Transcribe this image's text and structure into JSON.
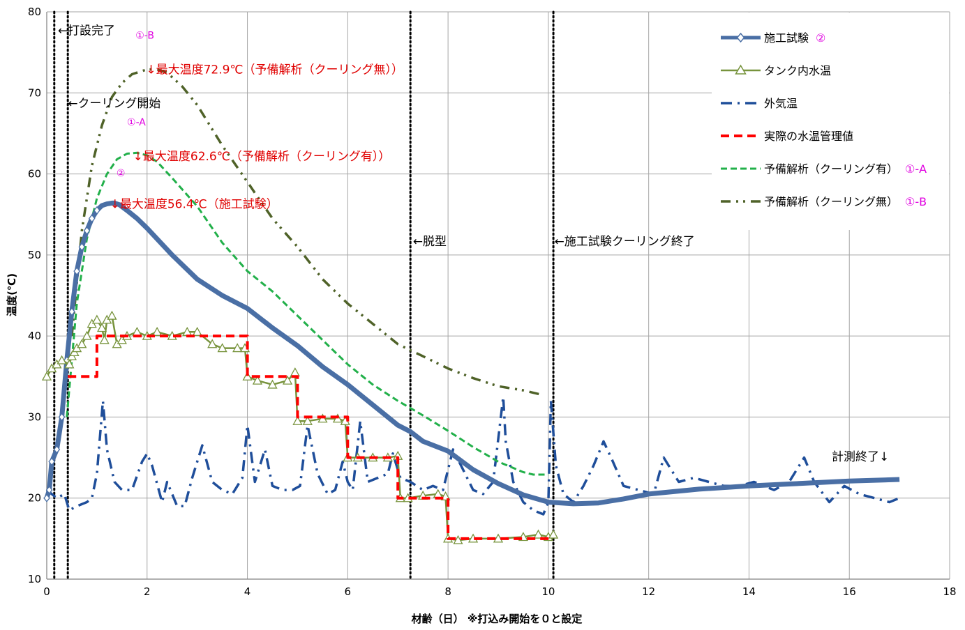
{
  "chart_data": {
    "type": "line",
    "title": "",
    "xlabel": "材齢（日） ※打込み開始を０と設定",
    "ylabel": "温度(℃)",
    "xlim": [
      0,
      18
    ],
    "ylim": [
      10,
      80
    ],
    "xticks": [
      0,
      2,
      4,
      6,
      8,
      10,
      12,
      14,
      16,
      18
    ],
    "yticks": [
      10,
      20,
      30,
      40,
      50,
      60,
      70,
      80
    ],
    "grid": true,
    "legend_position": "top-right",
    "vlines": [
      0.15,
      0.42,
      7.25,
      10.1
    ],
    "series": [
      {
        "name": "施工試験",
        "name_suffix": "②",
        "color": "#4a6fa5",
        "style": "thick-line-diamond",
        "x": [
          0,
          0.05,
          0.1,
          0.2,
          0.3,
          0.4,
          0.5,
          0.6,
          0.7,
          0.8,
          0.9,
          1.0,
          1.1,
          1.2,
          1.3,
          1.35,
          1.45,
          1.6,
          1.8,
          2.0,
          2.5,
          3.0,
          3.5,
          4.0,
          4.5,
          5.0,
          5.5,
          6.0,
          6.5,
          7.0,
          7.25,
          7.5,
          8.0,
          8.5,
          9.0,
          9.5,
          10.0,
          10.5,
          11.0,
          11.5,
          12.0,
          13.0,
          14.0,
          15.0,
          16.0,
          17.0
        ],
        "y": [
          20,
          21,
          24.5,
          26,
          30,
          37,
          43,
          48,
          51,
          53,
          54.5,
          55.5,
          56.1,
          56.3,
          56.4,
          56.4,
          56.2,
          55.5,
          54.5,
          53.3,
          50,
          47,
          45,
          43.4,
          41,
          38.8,
          36.2,
          34,
          31.5,
          29,
          28.2,
          27,
          25.8,
          23.5,
          21.8,
          20.4,
          19.5,
          19.3,
          19.4,
          19.9,
          20.5,
          21.1,
          21.5,
          21.8,
          22.1,
          22.3
        ]
      },
      {
        "name": "タンク内水温",
        "color": "#77933c",
        "style": "line-triangle",
        "x": [
          0,
          0.1,
          0.2,
          0.3,
          0.45,
          0.5,
          0.55,
          0.6,
          0.7,
          0.8,
          0.9,
          1.0,
          1.1,
          1.15,
          1.2,
          1.3,
          1.4,
          1.5,
          1.6,
          1.8,
          2.0,
          2.2,
          2.5,
          2.8,
          3.0,
          3.3,
          3.5,
          3.8,
          3.95,
          4.0,
          4.2,
          4.5,
          4.8,
          4.95,
          5.0,
          5.2,
          5.5,
          5.8,
          5.95,
          6.0,
          6.2,
          6.5,
          6.8,
          7.0,
          7.05,
          7.2,
          7.5,
          7.8,
          7.95,
          8.0,
          8.2,
          8.5,
          9.0,
          9.5,
          9.8,
          10.0,
          10.1
        ],
        "y": [
          35,
          36,
          36.5,
          37,
          36.5,
          37.5,
          38,
          38.5,
          39,
          40,
          41.5,
          42,
          41,
          39.5,
          42,
          42.5,
          39,
          39.5,
          40,
          40.5,
          40,
          40.5,
          40,
          40.5,
          40.5,
          39,
          38.5,
          38.5,
          38.5,
          35,
          34.5,
          34,
          34.5,
          35.5,
          29.5,
          29.5,
          29.8,
          29.8,
          29.5,
          25,
          25,
          25,
          25,
          25.2,
          20,
          20,
          20.3,
          20.5,
          20.2,
          15,
          14.8,
          15,
          15,
          15.2,
          15.5,
          15.2,
          15.5
        ]
      },
      {
        "name": "外気温",
        "color": "#1f4e9a",
        "style": "dash-dot",
        "x": [
          0,
          0.2,
          0.35,
          0.45,
          0.6,
          0.8,
          0.9,
          1.0,
          1.12,
          1.2,
          1.35,
          1.5,
          1.7,
          1.9,
          2.0,
          2.1,
          2.3,
          2.4,
          2.6,
          2.75,
          2.9,
          3.1,
          3.3,
          3.5,
          3.7,
          3.9,
          4.0,
          4.15,
          4.35,
          4.5,
          4.7,
          4.9,
          5.05,
          5.2,
          5.4,
          5.6,
          5.75,
          5.9,
          6.0,
          6.1,
          6.25,
          6.4,
          6.6,
          6.8,
          6.9,
          7.05,
          7.25,
          7.5,
          7.7,
          7.9,
          8.1,
          8.3,
          8.5,
          8.7,
          8.9,
          9.1,
          9.15,
          9.3,
          9.5,
          9.7,
          9.9,
          10.0,
          10.05,
          10.15,
          10.3,
          10.5,
          10.7,
          10.9,
          11.1,
          11.25,
          11.5,
          11.8,
          12.1,
          12.3,
          12.6,
          12.9,
          13.2,
          13.5,
          13.8,
          14.1,
          14.5,
          14.8,
          15.1,
          15.3,
          15.6,
          15.9,
          16.2,
          16.5,
          16.8,
          17.0
        ],
        "y": [
          21,
          20,
          20.5,
          18.5,
          19,
          19.5,
          20,
          23,
          32,
          26,
          22,
          21,
          21,
          24.5,
          25.5,
          24,
          19.5,
          22,
          19,
          19,
          22.5,
          26.5,
          22,
          21,
          20.5,
          22.5,
          29,
          22,
          26,
          21.5,
          21,
          21,
          21.5,
          29,
          23,
          20.5,
          21,
          24.5,
          22,
          21,
          29.5,
          22,
          22.5,
          23,
          25.5,
          22.5,
          22,
          21,
          21.5,
          21,
          26,
          23.5,
          21,
          20.5,
          22,
          32.5,
          27,
          22,
          19.5,
          18.5,
          18,
          19.5,
          32,
          24,
          20.5,
          19.5,
          21.5,
          24,
          27,
          25,
          21.5,
          21,
          20.5,
          25,
          22,
          22.5,
          22,
          21.5,
          21.5,
          22,
          21,
          22,
          25,
          22,
          19.5,
          21.5,
          20.5,
          20,
          19.5,
          20
        ]
      },
      {
        "name": "実際の水温管理値",
        "color": "#ff0000",
        "style": "dashed-step",
        "x": [
          0.42,
          1.0,
          1.0,
          4.0,
          4.0,
          5.0,
          5.0,
          6.0,
          6.0,
          7.0,
          7.0,
          8.0,
          8.0,
          10.1
        ],
        "y": [
          35,
          35,
          40,
          40,
          35,
          35,
          30,
          30,
          25,
          25,
          20,
          20,
          15,
          15
        ]
      },
      {
        "name": "予備解析（クーリング有）",
        "name_suffix": "①-A",
        "color": "#22b04a",
        "style": "dashed",
        "x": [
          0.4,
          0.6,
          0.8,
          1.0,
          1.2,
          1.4,
          1.6,
          1.8,
          2.0,
          2.2,
          2.5,
          3.0,
          3.5,
          4.0,
          4.5,
          5.0,
          5.5,
          6.0,
          6.5,
          7.0,
          7.5,
          8.0,
          8.5,
          9.0,
          9.5,
          9.7,
          10.0
        ],
        "y": [
          30,
          44,
          52,
          57,
          60,
          61.8,
          62.5,
          62.6,
          62.3,
          61.5,
          59.5,
          56,
          51.5,
          48,
          45.5,
          42.5,
          39.5,
          36.5,
          34,
          32,
          30.2,
          28.3,
          26.3,
          24.5,
          23.2,
          22.9,
          22.9
        ]
      },
      {
        "name": "予備解析（クーリング無）",
        "name_suffix": "①-B",
        "color": "#4f6228",
        "style": "dash-dot-dot",
        "x": [
          0.5,
          0.7,
          0.9,
          1.1,
          1.3,
          1.5,
          1.7,
          2.0,
          2.2,
          2.4,
          2.7,
          3.0,
          3.5,
          4.0,
          4.5,
          5.0,
          5.5,
          6.0,
          6.5,
          7.0,
          7.5,
          8.0,
          8.5,
          9.0,
          9.5,
          9.9
        ],
        "y": [
          40,
          53,
          61,
          66,
          69.5,
          71.2,
          72.3,
          72.9,
          72.9,
          72.5,
          70.8,
          68.5,
          63.5,
          59,
          54.5,
          51,
          47,
          44,
          41.5,
          39,
          37.5,
          36,
          34.8,
          33.8,
          33.3,
          32.7
        ]
      }
    ],
    "annotations": [
      {
        "text": "←打設完了",
        "x": 0.22,
        "y": 77.2,
        "color": "black"
      },
      {
        "text": "←クーリング開始",
        "x": 0.42,
        "y": 68.2,
        "color": "black"
      },
      {
        "text": "←脱型",
        "x": 7.3,
        "y": 51.2,
        "color": "black"
      },
      {
        "text": "←施工試験クーリング終了",
        "x": 10.12,
        "y": 51.2,
        "color": "black"
      },
      {
        "text": "計測終了↓",
        "x": 15.65,
        "y": 24.6,
        "color": "black"
      },
      {
        "text": "①-B",
        "x": 1.77,
        "y": 76.7,
        "color": "magenta"
      },
      {
        "text": "↓最大温度72.9℃（予備解析（クーリング無））",
        "x": 1.98,
        "y": 72.4,
        "color": "red"
      },
      {
        "text": "①-A",
        "x": 1.6,
        "y": 66.0,
        "color": "magenta"
      },
      {
        "text": "↓最大温度62.6℃（予備解析（クーリング有））",
        "x": 1.72,
        "y": 61.7,
        "color": "red"
      },
      {
        "text": "②",
        "x": 1.39,
        "y": 59.7,
        "color": "magenta"
      },
      {
        "text": "↓最大温度56.4℃（施工試験）",
        "x": 1.26,
        "y": 55.8,
        "color": "red"
      }
    ]
  },
  "colors": {
    "grid": "#a6a6a6",
    "axis": "#808080",
    "vline": "#000000"
  }
}
